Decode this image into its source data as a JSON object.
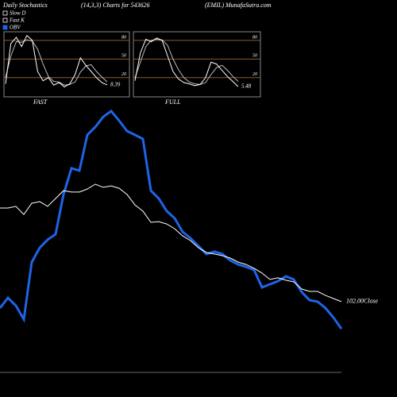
{
  "header": {
    "left": "Daily Stochastics",
    "center": "(14,3,3) Charts for 543626",
    "right": "(EMIL) MunafaSutra.com"
  },
  "chart_data": [
    {
      "type": "line",
      "title": "FAST",
      "ylim": [
        -11,
        94
      ],
      "yticks": [
        20,
        50,
        80
      ],
      "grid": true,
      "grid_color": "#8b5a2b",
      "series": [
        {
          "name": "Slow D",
          "color": "#bbbbbb",
          "values": [
            20,
            55,
            78,
            77,
            81,
            79,
            66,
            42,
            22,
            14,
            13,
            8,
            9,
            13,
            29,
            39,
            41,
            30,
            21,
            13
          ]
        },
        {
          "name": "Fast K",
          "color": "#ffffff",
          "values": [
            10,
            75,
            85,
            70,
            88,
            80,
            30,
            15,
            20,
            8,
            12,
            5,
            10,
            25,
            52,
            40,
            30,
            20,
            12,
            8.39
          ]
        }
      ]
    },
    {
      "type": "line",
      "title": "FULL",
      "ylim": [
        -11,
        94
      ],
      "yticks": [
        20,
        50,
        80
      ],
      "grid": true,
      "grid_color": "#8b5a2b",
      "series": [
        {
          "name": "Slow D",
          "color": "#bbbbbb",
          "values": [
            20,
            45,
            70,
            80,
            82,
            81,
            72,
            50,
            33,
            20,
            13,
            10,
            9,
            12,
            25,
            36,
            40,
            32,
            22,
            14
          ]
        },
        {
          "name": "Fast K",
          "color": "#ffffff",
          "values": [
            15,
            60,
            82,
            78,
            84,
            80,
            55,
            30,
            18,
            12,
            10,
            7,
            9,
            20,
            45,
            42,
            32,
            22,
            14,
            5.48
          ]
        }
      ]
    },
    {
      "type": "line",
      "ylim": [
        0,
        100
      ],
      "series": [
        {
          "name": "OBV",
          "color": "#1e64e6",
          "values": [
            14,
            18.3,
            15,
            9.3,
            33.3,
            39.3,
            42.7,
            45,
            61.7,
            72.7,
            71.7,
            86.7,
            90,
            94.3,
            96.7,
            92.7,
            88.3,
            86.7,
            85,
            63.3,
            60,
            54.7,
            51.7,
            46,
            43.3,
            40,
            36.7,
            37.7,
            36.7,
            34,
            32.3,
            31.3,
            30,
            22.7,
            24,
            25.3,
            27.3,
            26,
            20.7,
            17.3,
            16.7,
            14,
            10,
            5.3
          ]
        },
        {
          "end_label": "102.00Close",
          "color": "#ffffff",
          "values": [
            56,
            56,
            56.7,
            53.3,
            58,
            58.7,
            56.7,
            60,
            63.3,
            62.7,
            62.7,
            64,
            66,
            64.7,
            65.3,
            64.3,
            61.7,
            57.3,
            54.7,
            50,
            50.3,
            49.3,
            47.3,
            44.3,
            42.3,
            39.3,
            37.3,
            36.7,
            36,
            35,
            33.3,
            32.3,
            30.7,
            28.7,
            26,
            26.7,
            25.7,
            25,
            22,
            21,
            21,
            19.3,
            18,
            16.7
          ]
        }
      ]
    }
  ]
}
